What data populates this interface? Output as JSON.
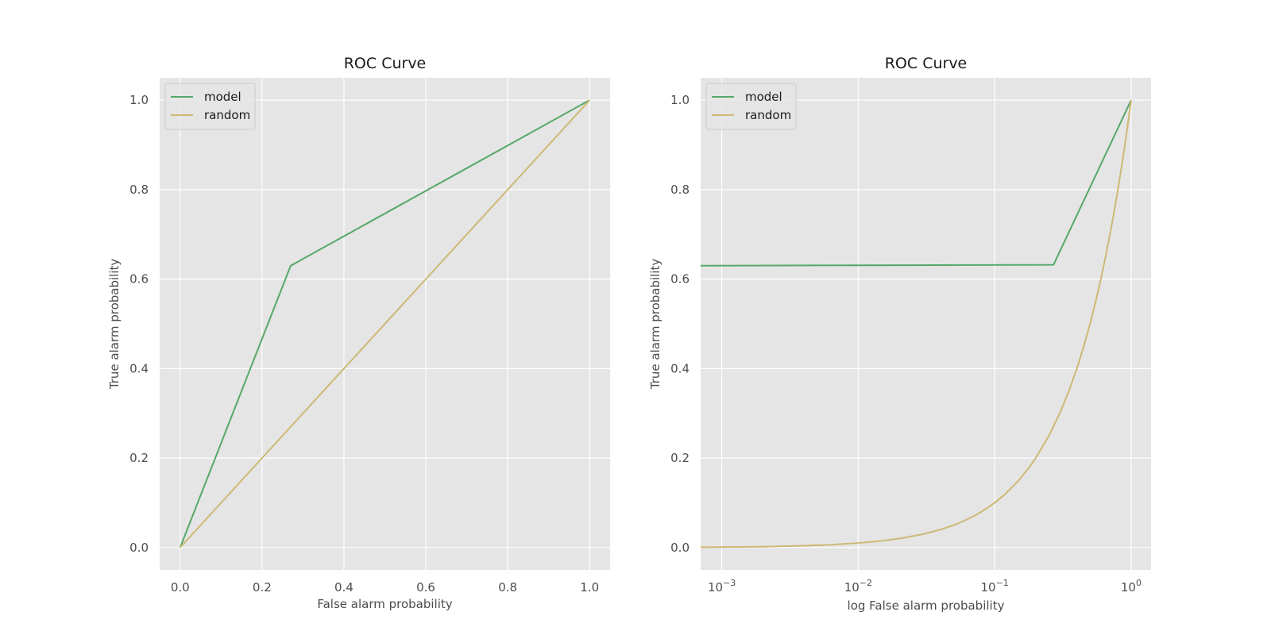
{
  "chart_data": [
    {
      "type": "line",
      "title": "ROC Curve",
      "xlabel": "False alarm probability",
      "ylabel": "True alarm probability",
      "xscale": "linear",
      "xlim": [
        -0.05,
        1.05
      ],
      "ylim": [
        -0.05,
        1.05
      ],
      "xticks": [
        0.0,
        0.2,
        0.4,
        0.6,
        0.8,
        1.0
      ],
      "xtick_labels": [
        "0.0",
        "0.2",
        "0.4",
        "0.6",
        "0.8",
        "1.0"
      ],
      "yticks": [
        0.0,
        0.2,
        0.4,
        0.6,
        0.8,
        1.0
      ],
      "ytick_labels": [
        "0.0",
        "0.2",
        "0.4",
        "0.6",
        "0.8",
        "1.0"
      ],
      "grid": true,
      "legend_position": "upper-left",
      "series": [
        {
          "name": "model",
          "color": "#55a868",
          "x": [
            0.0,
            0.27,
            1.0
          ],
          "y": [
            0.0,
            0.63,
            1.0
          ]
        },
        {
          "name": "random",
          "color": "#ccb974",
          "x": [
            0.0,
            1.0
          ],
          "y": [
            0.0,
            1.0
          ]
        }
      ]
    },
    {
      "type": "line",
      "title": "ROC Curve",
      "xlabel": "log False alarm probability",
      "ylabel": "True alarm probability",
      "xscale": "log",
      "xlim": [
        0.0007,
        1.4
      ],
      "ylim": [
        -0.05,
        1.05
      ],
      "xticks": [
        0.001,
        0.01,
        0.1,
        1
      ],
      "xtick_labels": [
        {
          "base": "10",
          "exp": "−3"
        },
        {
          "base": "10",
          "exp": "−2"
        },
        {
          "base": "10",
          "exp": "−1"
        },
        {
          "base": "10",
          "exp": "0"
        }
      ],
      "yticks": [
        0.0,
        0.2,
        0.4,
        0.6,
        0.8,
        1.0
      ],
      "ytick_labels": [
        "0.0",
        "0.2",
        "0.4",
        "0.6",
        "0.8",
        "1.0"
      ],
      "grid": true,
      "legend_position": "upper-left",
      "series": [
        {
          "name": "model",
          "color": "#55a868",
          "x": [
            0.0007,
            0.27,
            1.0
          ],
          "y": [
            0.63,
            0.632,
            1.0
          ]
        },
        {
          "name": "random",
          "color": "#ccb974",
          "x": [
            0.0007,
            0.002,
            0.004,
            0.006,
            0.01,
            0.014,
            0.02,
            0.03,
            0.04,
            0.05,
            0.06,
            0.07,
            0.08,
            0.1,
            0.12,
            0.15,
            0.18,
            0.2,
            0.25,
            0.3,
            0.35,
            0.4,
            0.45,
            0.5,
            0.55,
            0.6,
            0.65,
            0.7,
            0.75,
            0.8,
            0.85,
            0.9,
            0.95,
            1.0
          ],
          "y": [
            0.0007,
            0.002,
            0.004,
            0.006,
            0.01,
            0.014,
            0.02,
            0.03,
            0.04,
            0.05,
            0.06,
            0.07,
            0.08,
            0.1,
            0.12,
            0.15,
            0.18,
            0.2,
            0.25,
            0.3,
            0.35,
            0.4,
            0.45,
            0.5,
            0.55,
            0.6,
            0.65,
            0.7,
            0.75,
            0.8,
            0.85,
            0.9,
            0.95,
            1.0
          ]
        }
      ]
    }
  ]
}
